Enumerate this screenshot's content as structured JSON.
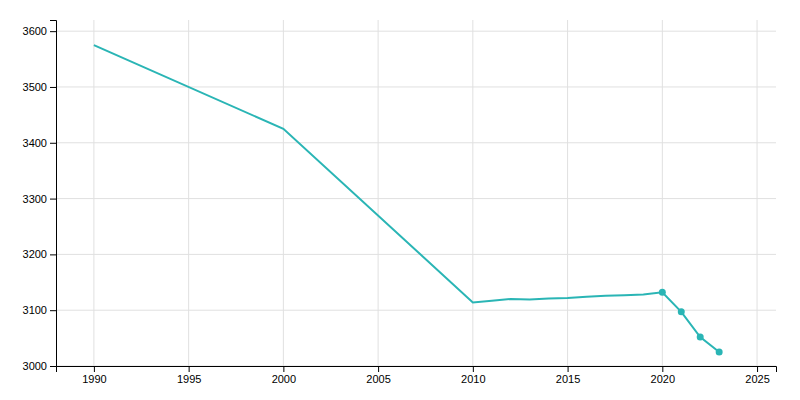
{
  "chart_data": {
    "type": "line",
    "x": [
      1990,
      2000,
      2010,
      2011,
      2012,
      2013,
      2014,
      2015,
      2016,
      2017,
      2018,
      2019,
      2020,
      2021,
      2022,
      2023
    ],
    "series": [
      {
        "values": [
          3575,
          3425,
          3114,
          3117,
          3120,
          3119,
          3121,
          3122,
          3124,
          3126,
          3127,
          3128,
          3132,
          3097,
          3052,
          3025
        ],
        "color": "#2ab5b5"
      },
      {
        "type": "scatter",
        "marker": "circle",
        "values": [
          null,
          null,
          null,
          null,
          null,
          null,
          null,
          null,
          null,
          null,
          null,
          null,
          3132,
          3097,
          3052,
          3025
        ],
        "color": "#2ab5b5"
      }
    ],
    "xlim": [
      1988,
      2026
    ],
    "ylim": [
      3000,
      3620
    ],
    "xticks": [
      1990,
      1995,
      2000,
      2005,
      2010,
      2015,
      2020,
      2025
    ],
    "yticks": [
      3000,
      3100,
      3200,
      3300,
      3400,
      3500,
      3600
    ],
    "grid": true
  }
}
